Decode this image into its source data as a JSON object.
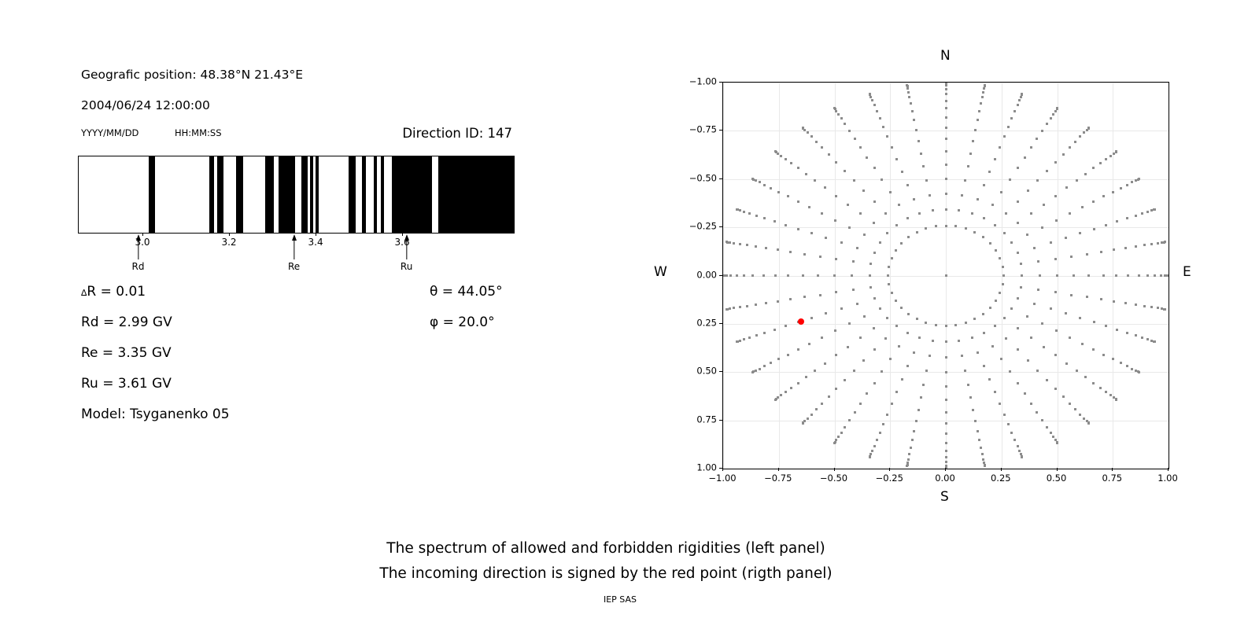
{
  "header": {
    "geo_position": "Geografic position: 48.38°N 21.43°E",
    "datetime": "2004/06/24 12:00:00",
    "date_format": "YYYY/MM/DD",
    "time_format": "HH:MM:SS",
    "direction_id": "Direction ID: 147"
  },
  "info": {
    "delta_sym": "∆",
    "delta_rest": "R = 0.01",
    "rd": "Rd = 2.99 GV",
    "re": "Re = 3.35 GV",
    "ru": "Ru = 3.61 GV",
    "model": "Model: Tsyganenko 05",
    "theta": "θ = 44.05°",
    "phi": "φ = 20.0°"
  },
  "captions": {
    "line1": "The spectrum of allowed and forbidden rigidities (left panel)",
    "line2": "The incoming direction is signed by the red point (rigth panel)",
    "credit": "IEP SAS"
  },
  "colors": {
    "bar": "#000000",
    "dot_gray": "#8c8c8c",
    "red_point": "#ff0000",
    "grid": "#e9e9e9"
  },
  "chart_data": [
    {
      "type": "bar",
      "name": "rigidity-spectrum",
      "description": "Barcode-style spectrum; black intervals = allowed rigidities, white = forbidden",
      "xlim": [
        2.851,
        3.856
      ],
      "xticks": [
        3.0,
        3.2,
        3.4,
        3.6
      ],
      "xtick_labels": [
        "3.0",
        "3.2",
        "3.4",
        "3.6"
      ],
      "allowed_intervals_gv": [
        [
          3.013,
          3.027
        ],
        [
          3.152,
          3.163
        ],
        [
          3.171,
          3.186
        ],
        [
          3.215,
          3.23
        ],
        [
          3.282,
          3.302
        ],
        [
          3.313,
          3.35
        ],
        [
          3.365,
          3.38
        ],
        [
          3.386,
          3.393
        ],
        [
          3.398,
          3.406
        ],
        [
          3.475,
          3.491
        ],
        [
          3.506,
          3.515
        ],
        [
          3.532,
          3.54
        ],
        [
          3.548,
          3.556
        ],
        [
          3.574,
          3.667
        ],
        [
          3.682,
          3.856
        ]
      ],
      "arrows": [
        {
          "label": "Rd",
          "value": 2.99
        },
        {
          "label": "Re",
          "value": 3.35
        },
        {
          "label": "Ru",
          "value": 3.61
        }
      ]
    },
    {
      "type": "scatter",
      "name": "incoming-direction-map",
      "xlim": [
        -1.0,
        1.0
      ],
      "ylim": [
        -1.0,
        1.0
      ],
      "xticks": [
        -1.0,
        -0.75,
        -0.5,
        -0.25,
        0.0,
        0.25,
        0.5,
        0.75,
        1.0
      ],
      "xtick_labels": [
        "−1.00",
        "−0.75",
        "−0.50",
        "−0.25",
        "0.00",
        "0.25",
        "0.50",
        "0.75",
        "1.00"
      ],
      "ytick_labels": [
        "1.00",
        "0.75",
        "0.50",
        "0.25",
        "0.00",
        "−0.25",
        "−0.50",
        "−0.75",
        "−1.00"
      ],
      "grid": true,
      "compass": {
        "north": "N",
        "south": "S",
        "east": "E",
        "west": "W"
      },
      "spokes": {
        "azimuth_start_deg": 0,
        "azimuth_step_deg": 10,
        "azimuth_count": 36,
        "zenith_start_deg": 15,
        "zenith_end_deg": 90,
        "zenith_step_deg": 5,
        "radius_rule": "r = sin(zenith)",
        "center_point": [
          0,
          0
        ]
      },
      "red_point": {
        "x": -0.65,
        "y": -0.24
      }
    }
  ]
}
